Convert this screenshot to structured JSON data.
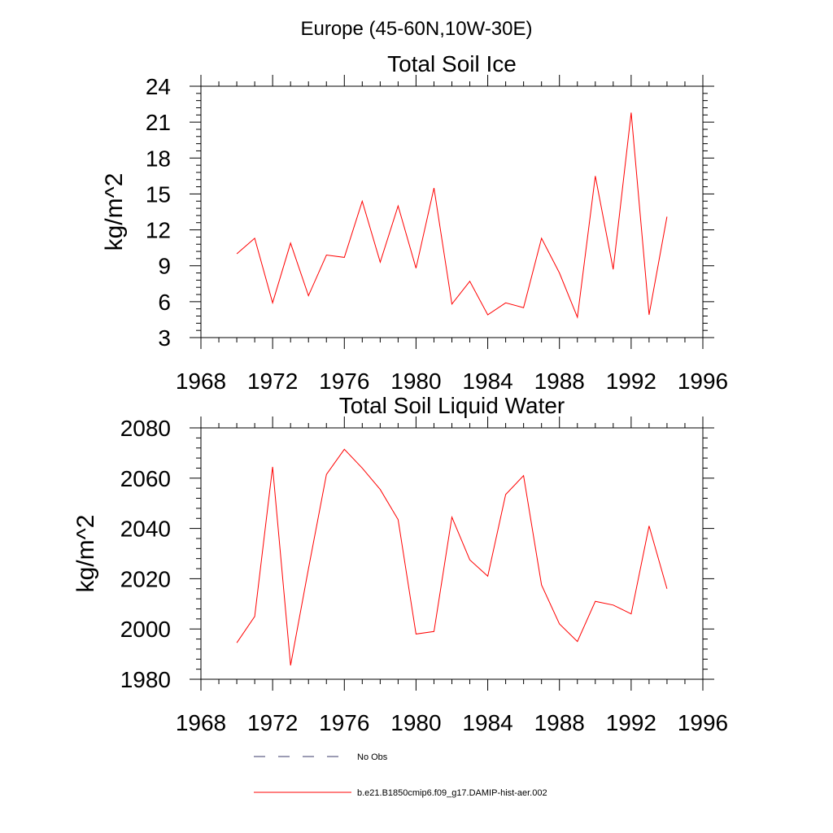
{
  "page": {
    "main_title": "Europe (45-60N,10W-30E)"
  },
  "legend": {
    "items": [
      {
        "label": "No Obs",
        "style": "dashed",
        "color": "#3a3a6a"
      },
      {
        "label": "b.e21.B1850cmip6.f09_g17.DAMIP-hist-aer.002",
        "style": "solid",
        "color": "#ff0000"
      }
    ]
  },
  "chart_data": [
    {
      "type": "line",
      "title": "Total Soil Ice",
      "xlabel": "",
      "ylabel": "kg/m^2",
      "xlim": [
        1968,
        1996
      ],
      "ylim": [
        3,
        24
      ],
      "xticks": [
        1968,
        1972,
        1976,
        1980,
        1984,
        1988,
        1992,
        1996
      ],
      "yticks": [
        3,
        6,
        9,
        12,
        15,
        18,
        21,
        24
      ],
      "grid": false,
      "series": [
        {
          "color": "#ff0000",
          "x": [
            1970,
            1971,
            1972,
            1973,
            1974,
            1975,
            1976,
            1977,
            1978,
            1979,
            1980,
            1981,
            1982,
            1983,
            1984,
            1985,
            1986,
            1987,
            1988,
            1989,
            1990,
            1991,
            1992,
            1993,
            1994
          ],
          "y": [
            10.0,
            11.3,
            5.9,
            10.9,
            6.5,
            9.9,
            9.7,
            14.4,
            9.3,
            14.0,
            8.8,
            15.5,
            5.8,
            7.7,
            4.9,
            5.9,
            5.5,
            11.3,
            8.4,
            4.7,
            16.5,
            8.7,
            21.8,
            4.9,
            13.1
          ]
        }
      ]
    },
    {
      "type": "line",
      "title": "Total Soil Liquid Water",
      "xlabel": "",
      "ylabel": "kg/m^2",
      "xlim": [
        1968,
        1996
      ],
      "ylim": [
        1980,
        2080
      ],
      "xticks": [
        1968,
        1972,
        1976,
        1980,
        1984,
        1988,
        1992,
        1996
      ],
      "yticks": [
        1980,
        2000,
        2020,
        2040,
        2060,
        2080
      ],
      "grid": false,
      "series": [
        {
          "color": "#ff0000",
          "x": [
            1970,
            1971,
            1972,
            1973,
            1974,
            1975,
            1976,
            1977,
            1978,
            1979,
            1980,
            1981,
            1982,
            1983,
            1984,
            1985,
            1986,
            1987,
            1988,
            1989,
            1990,
            1991,
            1992,
            1993,
            1994
          ],
          "y": [
            1994.5,
            2005,
            2064.5,
            1985.5,
            2024,
            2061.5,
            2071.5,
            2064,
            2055.5,
            2043.5,
            1998,
            1999,
            2044.5,
            2027.5,
            2021,
            2053.5,
            2061,
            2017.5,
            2002,
            1995,
            2011,
            2009.5,
            2006,
            2041,
            2016
          ]
        }
      ]
    }
  ]
}
